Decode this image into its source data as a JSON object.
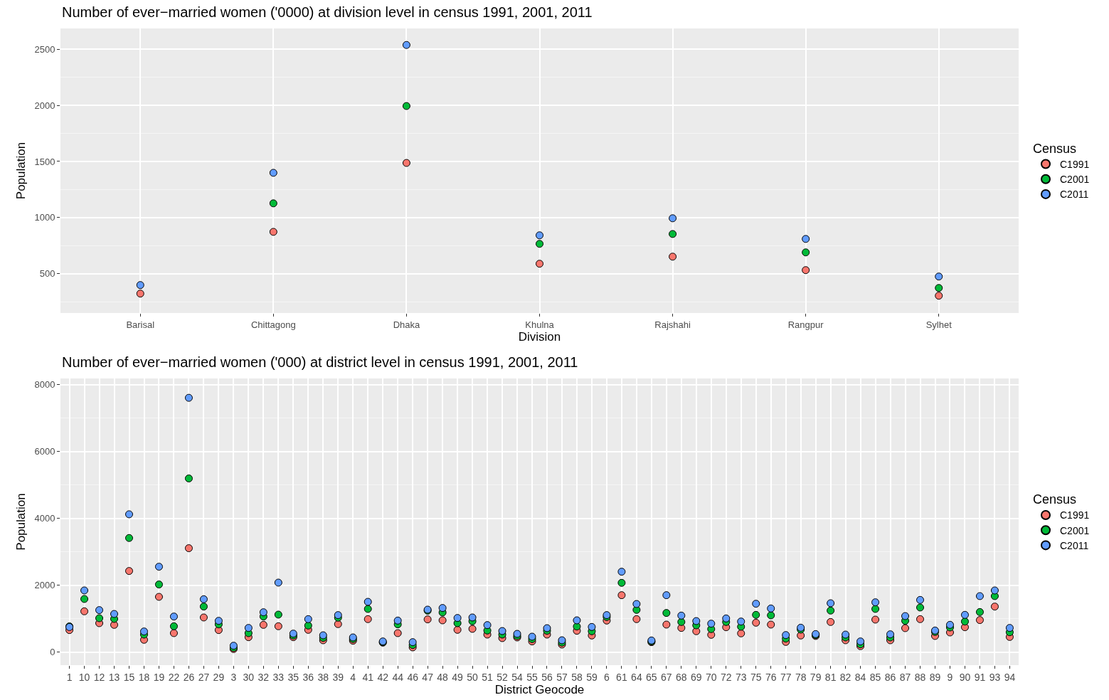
{
  "chart_data": [
    {
      "type": "scatter",
      "title": "Number of ever−married women ('0000) at division level in census 1991, 2001, 2011",
      "xlabel": "Division",
      "ylabel": "Population",
      "legend_title": "Census",
      "categories": [
        "Barisal",
        "Chittagong",
        "Dhaka",
        "Khulna",
        "Rajshahi",
        "Rangpur",
        "Sylhet"
      ],
      "series": [
        {
          "name": "C1991",
          "color": "#f8766d",
          "values": [
            323,
            873,
            1487,
            589,
            652,
            532,
            304
          ]
        },
        {
          "name": "C2001",
          "color": "#00ba38",
          "values": [
            null,
            1127,
            1994,
            766,
            854,
            690,
            373
          ]
        },
        {
          "name": "C2011",
          "color": "#619cff",
          "values": [
            399,
            1399,
            2538,
            842,
            994,
            810,
            475
          ]
        }
      ],
      "ylim": [
        150,
        2685
      ],
      "yticks": [
        500,
        1000,
        1500,
        2000,
        2500
      ],
      "grid": true,
      "legend": "right",
      "marker": "circle"
    },
    {
      "type": "scatter",
      "title": "Number of ever−married women ('000) at district level in census 1991, 2001, 2011",
      "xlabel": "District Geocode",
      "ylabel": "Population",
      "legend_title": "Census",
      "categories": [
        "1",
        "10",
        "12",
        "13",
        "15",
        "18",
        "19",
        "22",
        "26",
        "27",
        "29",
        "3",
        "30",
        "32",
        "33",
        "35",
        "36",
        "38",
        "39",
        "4",
        "41",
        "42",
        "44",
        "46",
        "47",
        "48",
        "49",
        "50",
        "51",
        "52",
        "54",
        "55",
        "56",
        "57",
        "58",
        "59",
        "6",
        "61",
        "64",
        "65",
        "67",
        "68",
        "69",
        "70",
        "72",
        "73",
        "75",
        "76",
        "77",
        "78",
        "79",
        "81",
        "82",
        "84",
        "85",
        "86",
        "87",
        "88",
        "89",
        "9",
        "90",
        "91",
        "93",
        "94"
      ],
      "series": [
        {
          "name": "C1991",
          "color": "#f8766d",
          "values": [
            660,
            1221,
            866,
            816,
            2428,
            369,
            1654,
            568,
            3110,
            1037,
            660,
            92,
            447,
            816,
            774,
            447,
            667,
            355,
            838,
            341,
            987,
            284,
            568,
            142,
            980,
            951,
            667,
            696,
            525,
            419,
            440,
            320,
            525,
            227,
            639,
            497,
            944,
            1704,
            987,
            298,
            824,
            724,
            625,
            518,
            745,
            561,
            880,
            824,
            305,
            497,
            483,
            902,
            355,
            178,
            973,
            355,
            717,
            987,
            483,
            589,
            745,
            959,
            1363,
            454
          ]
        },
        {
          "name": "C2001",
          "color": "#00ba38",
          "values": [
            770,
            1590,
            1015,
            994,
            3415,
            525,
            2024,
            774,
            5197,
            1363,
            831,
            128,
            568,
            1065,
            1122,
            497,
            795,
            426,
            1030,
            390,
            1292,
            298,
            831,
            213,
            1240,
            1186,
            866,
            923,
            646,
            525,
            483,
            390,
            639,
            284,
            767,
            625,
            1051,
            2073,
            1264,
            320,
            1172,
            902,
            802,
            689,
            902,
            760,
            1115,
            1101,
            405,
            675,
            511,
            1243,
            440,
            234,
            1292,
            440,
            937,
            1335,
            604,
            738,
            916,
            1200,
            1676,
            596
          ]
        },
        {
          "name": "C2011",
          "color": "#619cff",
          "values": [
            750,
            1846,
            1257,
            1143,
            4125,
            618,
            2556,
            1065,
            7611,
            1583,
            937,
            192,
            724,
            1193,
            2080,
            554,
            987,
            504,
            1108,
            440,
            1505,
            320,
            944,
            298,
            1271,
            1321,
            1022,
            1037,
            809,
            632,
            547,
            462,
            717,
            355,
            951,
            753,
            1108,
            2407,
            1441,
            348,
            1704,
            1093,
            930,
            852,
            1008,
            916,
            1448,
            1306,
            511,
            731,
            540,
            1463,
            525,
            320,
            1491,
            533,
            1079,
            1562,
            646,
            817,
            1115,
            1676,
            1846,
            724
          ]
        }
      ],
      "ylim": [
        -390,
        8190
      ],
      "yticks": [
        0,
        2000,
        4000,
        6000,
        8000
      ],
      "grid": true,
      "legend": "right",
      "marker": "circle"
    }
  ]
}
